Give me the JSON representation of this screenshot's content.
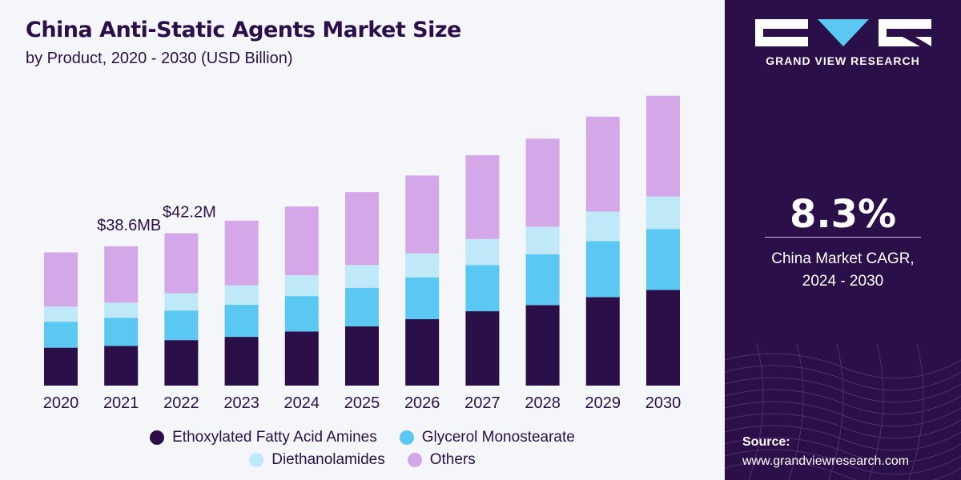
{
  "header": {
    "title": "China Anti-Static Agents Market Size",
    "subtitle": "by Product, 2020 - 2030 (USD Billion)"
  },
  "chart_data": {
    "type": "bar",
    "stacked": true,
    "categories": [
      "2020",
      "2021",
      "2022",
      "2023",
      "2024",
      "2025",
      "2026",
      "2027",
      "2028",
      "2029",
      "2030"
    ],
    "series": [
      {
        "name": "Ethoxylated Fatty Acid Amines",
        "color": "#2b0f48",
        "values": [
          10.5,
          11.0,
          12.6,
          13.5,
          15.0,
          16.4,
          18.4,
          20.6,
          22.3,
          24.5,
          26.5
        ]
      },
      {
        "name": "Glycerol Monostearate",
        "color": "#5bc8f3",
        "values": [
          7.2,
          7.8,
          8.2,
          8.9,
          9.8,
          10.7,
          11.6,
          12.8,
          14.1,
          15.5,
          16.9
        ]
      },
      {
        "name": "Diethanolamides",
        "color": "#bfe9f9",
        "values": [
          4.2,
          4.2,
          4.8,
          5.4,
          5.8,
          6.3,
          6.6,
          7.2,
          7.6,
          8.2,
          9.0
        ]
      },
      {
        "name": "Others",
        "color": "#d3a7e8",
        "values": [
          15.0,
          15.6,
          16.6,
          17.9,
          19.0,
          20.2,
          21.6,
          23.2,
          24.4,
          26.3,
          27.9
        ]
      }
    ],
    "annotations": [
      {
        "category": "2021",
        "text": "$38.6MB"
      },
      {
        "category": "2022",
        "text": "$42.2M"
      }
    ],
    "ylim": [
      0,
      82
    ],
    "grid": false,
    "legend_position": "bottom"
  },
  "side_panel": {
    "brand": "GRAND VIEW RESEARCH",
    "cagr_value": "8.3%",
    "cagr_label_line1": "China Market CAGR,",
    "cagr_label_line2": "2024 - 2030",
    "source_label": "Source:",
    "source_url": "www.grandviewresearch.com",
    "background_color": "#2b0f48"
  },
  "icons": {
    "logo": "gvr-logo"
  }
}
